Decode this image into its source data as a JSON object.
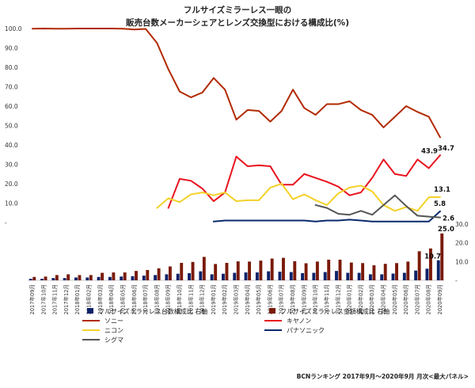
{
  "chart_data": {
    "type": "line",
    "title": [
      "フルサイズミラーレス一眼の",
      "販売台数メーカーシェアとレンズ交換型における構成比(%)"
    ],
    "source": "BCNランキング 2017年9月～2020年9月 月次<最大パネル>",
    "categories": [
      "2017年09月",
      "2017年10月",
      "2017年11月",
      "2017年12月",
      "2018年01月",
      "2018年02月",
      "2018年03月",
      "2018年04月",
      "2018年05月",
      "2018年06月",
      "2018年07月",
      "2018年08月",
      "2018年09月",
      "2018年10月",
      "2018年11月",
      "2018年12月",
      "2019年01月",
      "2019年02月",
      "2019年03月",
      "2019年04月",
      "2019年05月",
      "2019年06月",
      "2019年07月",
      "2019年08月",
      "2019年09月",
      "2019年10月",
      "2019年11月",
      "2019年12月",
      "2020年01月",
      "2020年02月",
      "2020年03月",
      "2020年04月",
      "2020年05月",
      "2020年06月",
      "2020年07月",
      "2020年08月",
      "2020年09月"
    ],
    "left_axis": {
      "ticks": [
        "100.0",
        "90.0",
        "80.0",
        "70.0",
        "60.0",
        "50.0",
        "40.0",
        "30.0",
        "20.0",
        "10.0",
        "-"
      ],
      "min": 0,
      "max": 100
    },
    "right_axis": {
      "ticks": [
        "30.0",
        "20.0",
        "10.0",
        "-"
      ],
      "min": 0,
      "max": 30
    },
    "series": [
      {
        "name": "ソニー",
        "type": "line",
        "color": "#b22a00",
        "values": [
          99.9,
          100,
          99.9,
          99.9,
          100,
          100,
          100,
          100,
          99.9,
          99.5,
          99.8,
          92.5,
          79,
          67.5,
          64.5,
          67,
          74.5,
          68.5,
          53,
          58,
          57.5,
          52,
          57.5,
          68.5,
          59,
          55.5,
          61,
          61,
          62.5,
          58,
          55.5,
          49,
          54.5,
          60,
          57,
          54.5,
          43.9
        ]
      },
      {
        "name": "キヤノン",
        "type": "line",
        "color": "#e8141e",
        "values": [
          null,
          null,
          null,
          null,
          null,
          null,
          null,
          null,
          null,
          null,
          null,
          null,
          7.5,
          22.5,
          21.5,
          17.5,
          11,
          15.5,
          34,
          29,
          29.5,
          29,
          19.5,
          19.5,
          25,
          23,
          21,
          18.5,
          14,
          15.5,
          23,
          32.5,
          25,
          24,
          32.5,
          28,
          34.7
        ]
      },
      {
        "name": "ニコン",
        "type": "line",
        "color": "#f4d12a",
        "values": [
          null,
          null,
          null,
          null,
          null,
          null,
          null,
          null,
          null,
          null,
          null,
          7.5,
          12.5,
          10.5,
          14.5,
          15.5,
          14,
          15.5,
          11,
          11.5,
          11.5,
          18,
          20,
          12,
          14.5,
          11.5,
          9,
          15,
          18,
          19,
          16,
          9,
          6,
          8,
          6,
          13,
          13.1
        ]
      },
      {
        "name": "パナソニック",
        "type": "line",
        "color": "#0a2a6e",
        "values": [
          null,
          null,
          null,
          null,
          null,
          null,
          null,
          null,
          null,
          null,
          null,
          null,
          null,
          null,
          null,
          null,
          0.5,
          1,
          1,
          1,
          1,
          1,
          1,
          1,
          1,
          0.5,
          1,
          1,
          1.5,
          1,
          0.5,
          0.5,
          0.5,
          0.5,
          0.5,
          0.5,
          5.8
        ]
      },
      {
        "name": "シグマ",
        "type": "line",
        "color": "#555555",
        "values": [
          null,
          null,
          null,
          null,
          null,
          null,
          null,
          null,
          null,
          null,
          null,
          null,
          null,
          null,
          null,
          null,
          null,
          null,
          null,
          null,
          null,
          null,
          null,
          null,
          null,
          9,
          7.5,
          4.5,
          4,
          6,
          4,
          9,
          14,
          8.5,
          3.5,
          3,
          2.6
        ]
      },
      {
        "name": "フルサイズミラーレス台数構成比 右軸",
        "type": "bar",
        "color": "#0c2269",
        "values": [
          0.8,
          0.8,
          1.2,
          1.2,
          1.5,
          1.5,
          1.8,
          1.8,
          2,
          2.2,
          2.5,
          2.8,
          3.2,
          3.5,
          3.8,
          4.8,
          3.2,
          3.5,
          4,
          4.2,
          4.2,
          4.8,
          4.6,
          4.4,
          3.8,
          4,
          4.4,
          5,
          4,
          4,
          3.2,
          3.2,
          3.6,
          4,
          5.2,
          6.2,
          10.7
        ]
      },
      {
        "name": "フルサイズミラーレス金額構成比 右軸",
        "type": "bar",
        "color": "#7a1a08",
        "values": [
          1.8,
          2,
          2.8,
          3.2,
          2.8,
          2.8,
          4,
          4.2,
          4.2,
          5,
          5.5,
          6.4,
          7.4,
          9.3,
          9.8,
          12.5,
          8.7,
          9.3,
          10.1,
          10,
          10.5,
          11.6,
          12,
          10.2,
          9.1,
          10,
          11,
          11,
          9.5,
          9.2,
          8,
          8.8,
          9.2,
          10,
          15.5,
          17,
          25
        ]
      }
    ],
    "data_labels": [
      {
        "series": "ソニー",
        "text": "43.9"
      },
      {
        "series": "キヤノン",
        "text": "34.7"
      },
      {
        "series": "ニコン",
        "text": "13.1"
      },
      {
        "series": "パナソニック",
        "text": "5.8"
      },
      {
        "series": "シグマ",
        "text": "2.6"
      },
      {
        "series": "フルサイズミラーレス台数構成比 右軸",
        "text": "10.7"
      },
      {
        "series": "フルサイズミラーレス金額構成比 右軸",
        "text": "25.0"
      }
    ],
    "legend": [
      {
        "label": "フルサイズミラーレス台数構成比 右軸",
        "kind": "bar",
        "color": "#0c2269"
      },
      {
        "label": "フルサイズミラーレス金額構成比 右軸",
        "kind": "bar",
        "color": "#7a1a08"
      },
      {
        "label": "ソニー",
        "kind": "line",
        "color": "#b22a00"
      },
      {
        "label": "キヤノン",
        "kind": "line",
        "color": "#e8141e"
      },
      {
        "label": "ニコン",
        "kind": "line",
        "color": "#f4d12a"
      },
      {
        "label": "パナソニック",
        "kind": "line",
        "color": "#0a2a6e"
      },
      {
        "label": "シグマ",
        "kind": "line",
        "color": "#555555"
      }
    ],
    "legend_position": "bottom"
  }
}
